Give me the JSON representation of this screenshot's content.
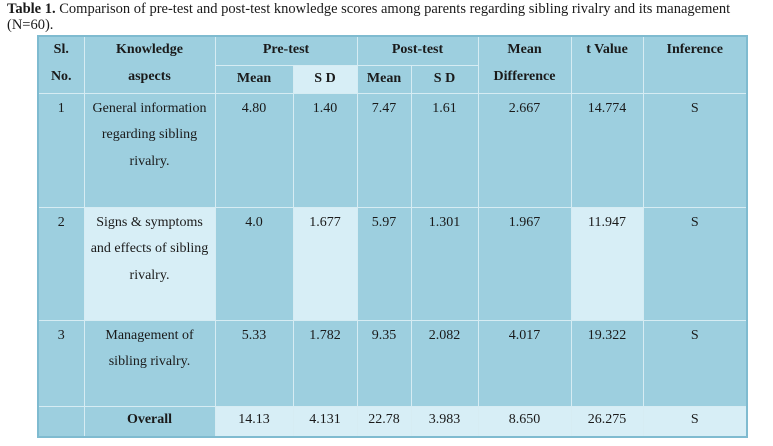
{
  "caption": {
    "label": "Table 1.",
    "text": " Comparison of pre-test and post-test knowledge scores among parents regarding sibling rivalry and its management (N=60)."
  },
  "headers": {
    "sl_line1": "Sl.",
    "sl_line2": "No.",
    "aspect_line1": "Knowledge",
    "aspect_line2": "aspects",
    "pretest": "Pre-test",
    "posttest": "Post-test",
    "mean_diff_line1": "Mean",
    "mean_diff_line2": "Difference",
    "t_value": "t Value",
    "inference": "Inference",
    "mean": "Mean",
    "sd": "S D"
  },
  "rows": [
    {
      "sl": "1",
      "aspect": "General information regarding sibling rivalry.",
      "pre_mean": "4.80",
      "pre_sd": "1.40",
      "post_mean": "7.47",
      "post_sd": "1.61",
      "mean_diff": "2.667",
      "t_value": "14.774",
      "inference": "S"
    },
    {
      "sl": "2",
      "aspect": "Signs & symptoms and effects of sibling rivalry.",
      "pre_mean": "4.0",
      "pre_sd": "1.677",
      "post_mean": "5.97",
      "post_sd": "1.301",
      "mean_diff": "1.967",
      "t_value": "11.947",
      "inference": "S"
    },
    {
      "sl": "3",
      "aspect": "Management of sibling rivalry.",
      "pre_mean": "5.33",
      "pre_sd": "1.782",
      "post_mean": "9.35",
      "post_sd": "2.082",
      "mean_diff": "4.017",
      "t_value": "19.322",
      "inference": "S"
    }
  ],
  "overall": {
    "label": "Overall",
    "pre_mean": "14.13",
    "pre_sd": "4.131",
    "post_mean": "22.78",
    "post_sd": "3.983",
    "mean_diff": "8.650",
    "t_value": "26.275",
    "inference": "S"
  },
  "colors": {
    "table_fill": "#9dcfdf",
    "highlight_fill": "#d7eef6",
    "grid_line": "#d6ecf3"
  }
}
